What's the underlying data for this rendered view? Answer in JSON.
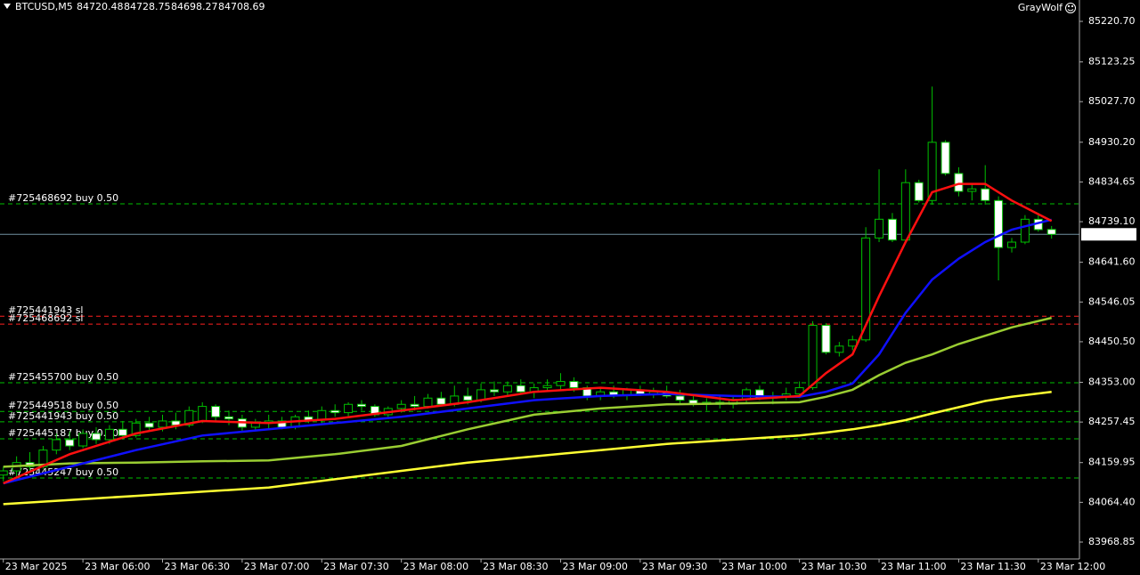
{
  "chart_data": {
    "type": "candlestick",
    "symbol": "BTCUSD,M5",
    "brand": "GrayWolf",
    "current_price": 84708.69,
    "ylim": [
      83928.2,
      85272.1
    ],
    "xlim": [
      -0.25,
      81.1
    ],
    "yticks": [
      {
        "value": 85220.7,
        "label": "85220.70"
      },
      85123.25,
      {
        "value": 85027.7,
        "label": "85027.70"
      },
      {
        "value": 84930.2,
        "label": "84930.20"
      },
      84834.65,
      {
        "value": 84739.1,
        "label": "84739.10"
      },
      {
        "value": 84641.6,
        "label": "84641.60"
      },
      84546.05,
      {
        "value": 84450.5,
        "label": "84450.50"
      },
      {
        "value": 84353.0,
        "label": "84353.00"
      },
      84257.45,
      84159.95,
      {
        "value": 84064.4,
        "label": "84064.40"
      },
      83968.85
    ],
    "xticks": [
      {
        "value": 0,
        "label": "23 Mar 2025"
      },
      {
        "value": 6,
        "label": "23 Mar 06:00"
      },
      {
        "value": 12,
        "label": "23 Mar 06:30"
      },
      {
        "value": 18,
        "label": "23 Mar 07:00"
      },
      {
        "value": 24,
        "label": "23 Mar 07:30"
      },
      {
        "value": 30,
        "label": "23 Mar 08:00"
      },
      {
        "value": 36,
        "label": "23 Mar 08:30"
      },
      {
        "value": 42,
        "label": "23 Mar 09:00"
      },
      {
        "value": 48,
        "label": "23 Mar 09:30"
      },
      {
        "value": 54,
        "label": "23 Mar 10:00"
      },
      {
        "value": 60,
        "label": "23 Mar 10:30"
      },
      {
        "value": 66,
        "label": "23 Mar 11:00"
      },
      {
        "value": 72,
        "label": "23 Mar 11:30"
      },
      {
        "value": 78,
        "label": "23 Mar 12:00"
      }
    ],
    "bull_color": "#00c000",
    "bear_color": "#ffffff",
    "open": [
      84130,
      84140,
      84160,
      84150,
      84190,
      84215,
      84200,
      84230,
      84215,
      84240,
      84225,
      84255,
      84245,
      84260,
      84250,
      84260,
      84295,
      84270,
      84265,
      84245,
      84255,
      84260,
      84245,
      84270,
      84262,
      84285,
      84280,
      84300,
      84295,
      84275,
      84290,
      84300,
      84295,
      84315,
      84300,
      84320,
      84310,
      84335,
      84330,
      84345,
      84330,
      84340,
      84345,
      84355,
      84340,
      84320,
      84330,
      84322,
      84335,
      84325,
      84330,
      84320,
      84310,
      84300,
      84305,
      84300,
      84312,
      84335,
      84315,
      84320,
      84325,
      84340,
      84490,
      84425,
      84440,
      84455,
      84700,
      84745,
      84695,
      84833,
      84790,
      84930,
      84855,
      84812,
      84818,
      84790,
      84677,
      84690,
      84745,
      84720.48
    ],
    "high": [
      84150,
      84175,
      84185,
      84200,
      84230,
      84235,
      84240,
      84245,
      84250,
      84260,
      84265,
      84270,
      84275,
      84280,
      84295,
      84305,
      84300,
      84285,
      84275,
      84265,
      84275,
      84270,
      84275,
      84285,
      84295,
      84300,
      84305,
      84310,
      84300,
      84295,
      84310,
      84320,
      84325,
      84330,
      84345,
      84340,
      84350,
      84355,
      84355,
      84360,
      84350,
      84360,
      84375,
      84365,
      84345,
      84340,
      84345,
      84340,
      84345,
      84340,
      84345,
      84335,
      84325,
      84315,
      84320,
      84320,
      84340,
      84345,
      84330,
      84340,
      84355,
      84500,
      84495,
      84450,
      84465,
      84726,
      84865,
      84760,
      84865,
      84840,
      85064,
      84935,
      84870,
      84830,
      84875,
      84800,
      84700,
      84755,
      84760,
      84728.75
    ],
    "low": [
      84115,
      84125,
      84140,
      84145,
      84180,
      84190,
      84195,
      84205,
      84205,
      84215,
      84220,
      84235,
      84235,
      84240,
      84245,
      84255,
      84260,
      84250,
      84235,
      84235,
      84240,
      84240,
      84240,
      84255,
      84255,
      84270,
      84270,
      84285,
      84270,
      84265,
      84280,
      84285,
      84290,
      84295,
      84295,
      84300,
      84305,
      84320,
      84320,
      84325,
      84315,
      84330,
      84335,
      84330,
      84310,
      84310,
      84315,
      84310,
      84320,
      84315,
      84315,
      84300,
      84295,
      84285,
      84290,
      84290,
      84305,
      84310,
      84300,
      84310,
      84315,
      84335,
      84420,
      84415,
      84430,
      84450,
      84690,
      84690,
      84690,
      84785,
      84780,
      84850,
      84800,
      84790,
      84780,
      84598,
      84665,
      84685,
      84715,
      84698.27
    ],
    "close": [
      84140,
      84160,
      84150,
      84190,
      84215,
      84200,
      84230,
      84215,
      84240,
      84225,
      84255,
      84245,
      84260,
      84250,
      84285,
      84295,
      84270,
      84265,
      84245,
      84255,
      84260,
      84245,
      84270,
      84262,
      84285,
      84280,
      84300,
      84295,
      84275,
      84290,
      84300,
      84295,
      84315,
      84300,
      84320,
      84310,
      84335,
      84330,
      84345,
      84330,
      84340,
      84345,
      84355,
      84340,
      84320,
      84330,
      84322,
      84335,
      84325,
      84330,
      84320,
      84310,
      84300,
      84305,
      84300,
      84312,
      84335,
      84315,
      84320,
      84325,
      84340,
      84490,
      84425,
      84440,
      84455,
      84700,
      84745,
      84695,
      84833,
      84790,
      84930,
      84855,
      84812,
      84818,
      84790,
      84677,
      84690,
      84745,
      84720,
      84708.69
    ],
    "moving_averages": {
      "x": [
        0,
        5,
        10,
        15,
        20,
        25,
        30,
        35,
        40,
        45,
        50,
        55,
        60,
        62,
        64,
        66,
        68,
        70,
        72,
        74,
        76,
        79
      ],
      "series": [
        {
          "color": "#ffff33",
          "values": [
            84060,
            84070,
            84080,
            84090,
            84100,
            84120,
            84140,
            84160,
            84175,
            84190,
            84205,
            84215,
            84225,
            84232,
            84240,
            84250,
            84262,
            84278,
            84293,
            84308,
            84318,
            84330
          ]
        },
        {
          "color": "#9acd32",
          "values": [
            84150,
            84158,
            84160,
            84163,
            84165,
            84180,
            84200,
            84240,
            84275,
            84290,
            84300,
            84302,
            84305,
            84318,
            84335,
            84370,
            84400,
            84420,
            84445,
            84465,
            84485,
            84508
          ]
        },
        {
          "color": "#1010ff",
          "values": [
            84110,
            84150,
            84190,
            84225,
            84240,
            84255,
            84270,
            84290,
            84310,
            84320,
            84325,
            84320,
            84318,
            84330,
            84350,
            84420,
            84520,
            84600,
            84650,
            84690,
            84720,
            84744
          ]
        },
        {
          "color": "#ff1010",
          "values": [
            84110,
            84180,
            84230,
            84260,
            84255,
            84265,
            84285,
            84305,
            84330,
            84340,
            84330,
            84310,
            84320,
            84375,
            84420,
            84560,
            84690,
            84810,
            84830,
            84830,
            84790,
            84741
          ]
        }
      ]
    },
    "orders": [
      {
        "label": "#725468692 buy 0.50",
        "price": 84782,
        "color": "#00c000"
      },
      {
        "label": "#725441943 sl",
        "price": 84512,
        "color": "#ff2020"
      },
      {
        "label": "#725468692 sl",
        "price": 84493,
        "color": "#ff2020"
      },
      {
        "label": "#725455700 buy 0.50",
        "price": 84352,
        "color": "#00c000"
      },
      {
        "label": "#725449518 buy 0.50",
        "price": 84283,
        "color": "#00c000"
      },
      {
        "label": "#725441943 buy 0.50",
        "price": 84258,
        "color": "#00c000"
      },
      {
        "label": "#725445187 buy 0.50",
        "price": 84217,
        "color": "#00c000"
      },
      {
        "label": "#725445247 buy 0.50",
        "price": 84123,
        "color": "#00c000"
      }
    ]
  }
}
